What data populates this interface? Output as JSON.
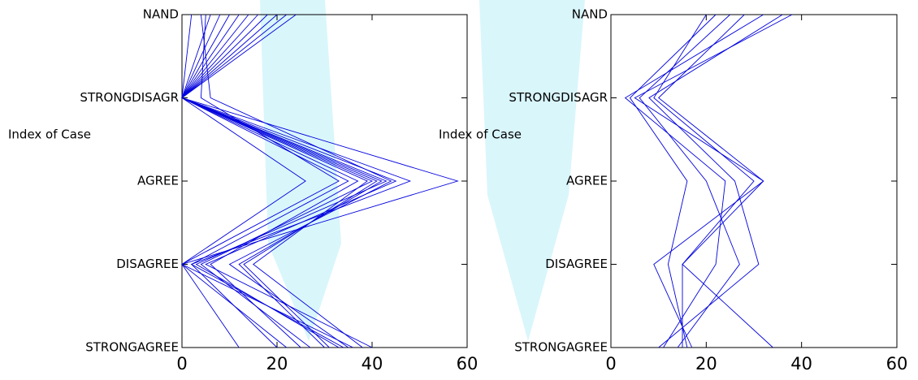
{
  "chart_data": [
    {
      "type": "line",
      "orientation": "horizontal",
      "y_label": "Index of Case",
      "categories": [
        "NAND",
        "STRONGDISAGR",
        "AGREE",
        "DISAGREE",
        "STRONGAGREE"
      ],
      "xlim": [
        0,
        60
      ],
      "xticks": [
        0,
        20,
        40,
        60
      ],
      "color": "#0000dd",
      "series": [
        {
          "values": [
            24,
            0,
            26,
            0,
            12
          ]
        },
        {
          "values": [
            22,
            0,
            58,
            0,
            36
          ]
        },
        {
          "values": [
            20,
            0,
            48,
            2,
            34
          ]
        },
        {
          "values": [
            18,
            0,
            45,
            5,
            40
          ]
        },
        {
          "values": [
            16,
            0,
            43,
            3,
            33
          ]
        },
        {
          "values": [
            14,
            0,
            42,
            12,
            30
          ]
        },
        {
          "values": [
            12,
            0,
            40,
            4,
            27
          ]
        },
        {
          "values": [
            10,
            0,
            39,
            15,
            38
          ]
        },
        {
          "values": [
            8,
            0,
            37,
            6,
            25
          ]
        },
        {
          "values": [
            6,
            0,
            35,
            2,
            20
          ]
        },
        {
          "values": [
            5,
            4,
            33,
            0,
            22
          ]
        },
        {
          "values": [
            4,
            6,
            44,
            10,
            35
          ]
        },
        {
          "values": [
            2,
            0,
            41,
            13,
            31
          ]
        }
      ]
    },
    {
      "type": "line",
      "orientation": "horizontal",
      "y_label": "Index of Case",
      "categories": [
        "NAND",
        "STRONGDISAGR",
        "AGREE",
        "DISAGREE",
        "STRONGAGREE"
      ],
      "xlim": [
        0,
        60
      ],
      "xticks": [
        0,
        20,
        40,
        60
      ],
      "color": "#0000dd",
      "series": [
        {
          "values": [
            38,
            5,
            32,
            9,
            17
          ]
        },
        {
          "values": [
            36,
            8,
            26,
            31,
            10
          ]
        },
        {
          "values": [
            32,
            3,
            24,
            22,
            11
          ]
        },
        {
          "values": [
            28,
            10,
            32,
            15,
            34
          ]
        },
        {
          "values": [
            25,
            6,
            20,
            27,
            14
          ]
        },
        {
          "values": [
            22,
            4,
            16,
            12,
            16
          ]
        },
        {
          "values": [
            20,
            9,
            30,
            15,
            15
          ]
        }
      ]
    }
  ]
}
